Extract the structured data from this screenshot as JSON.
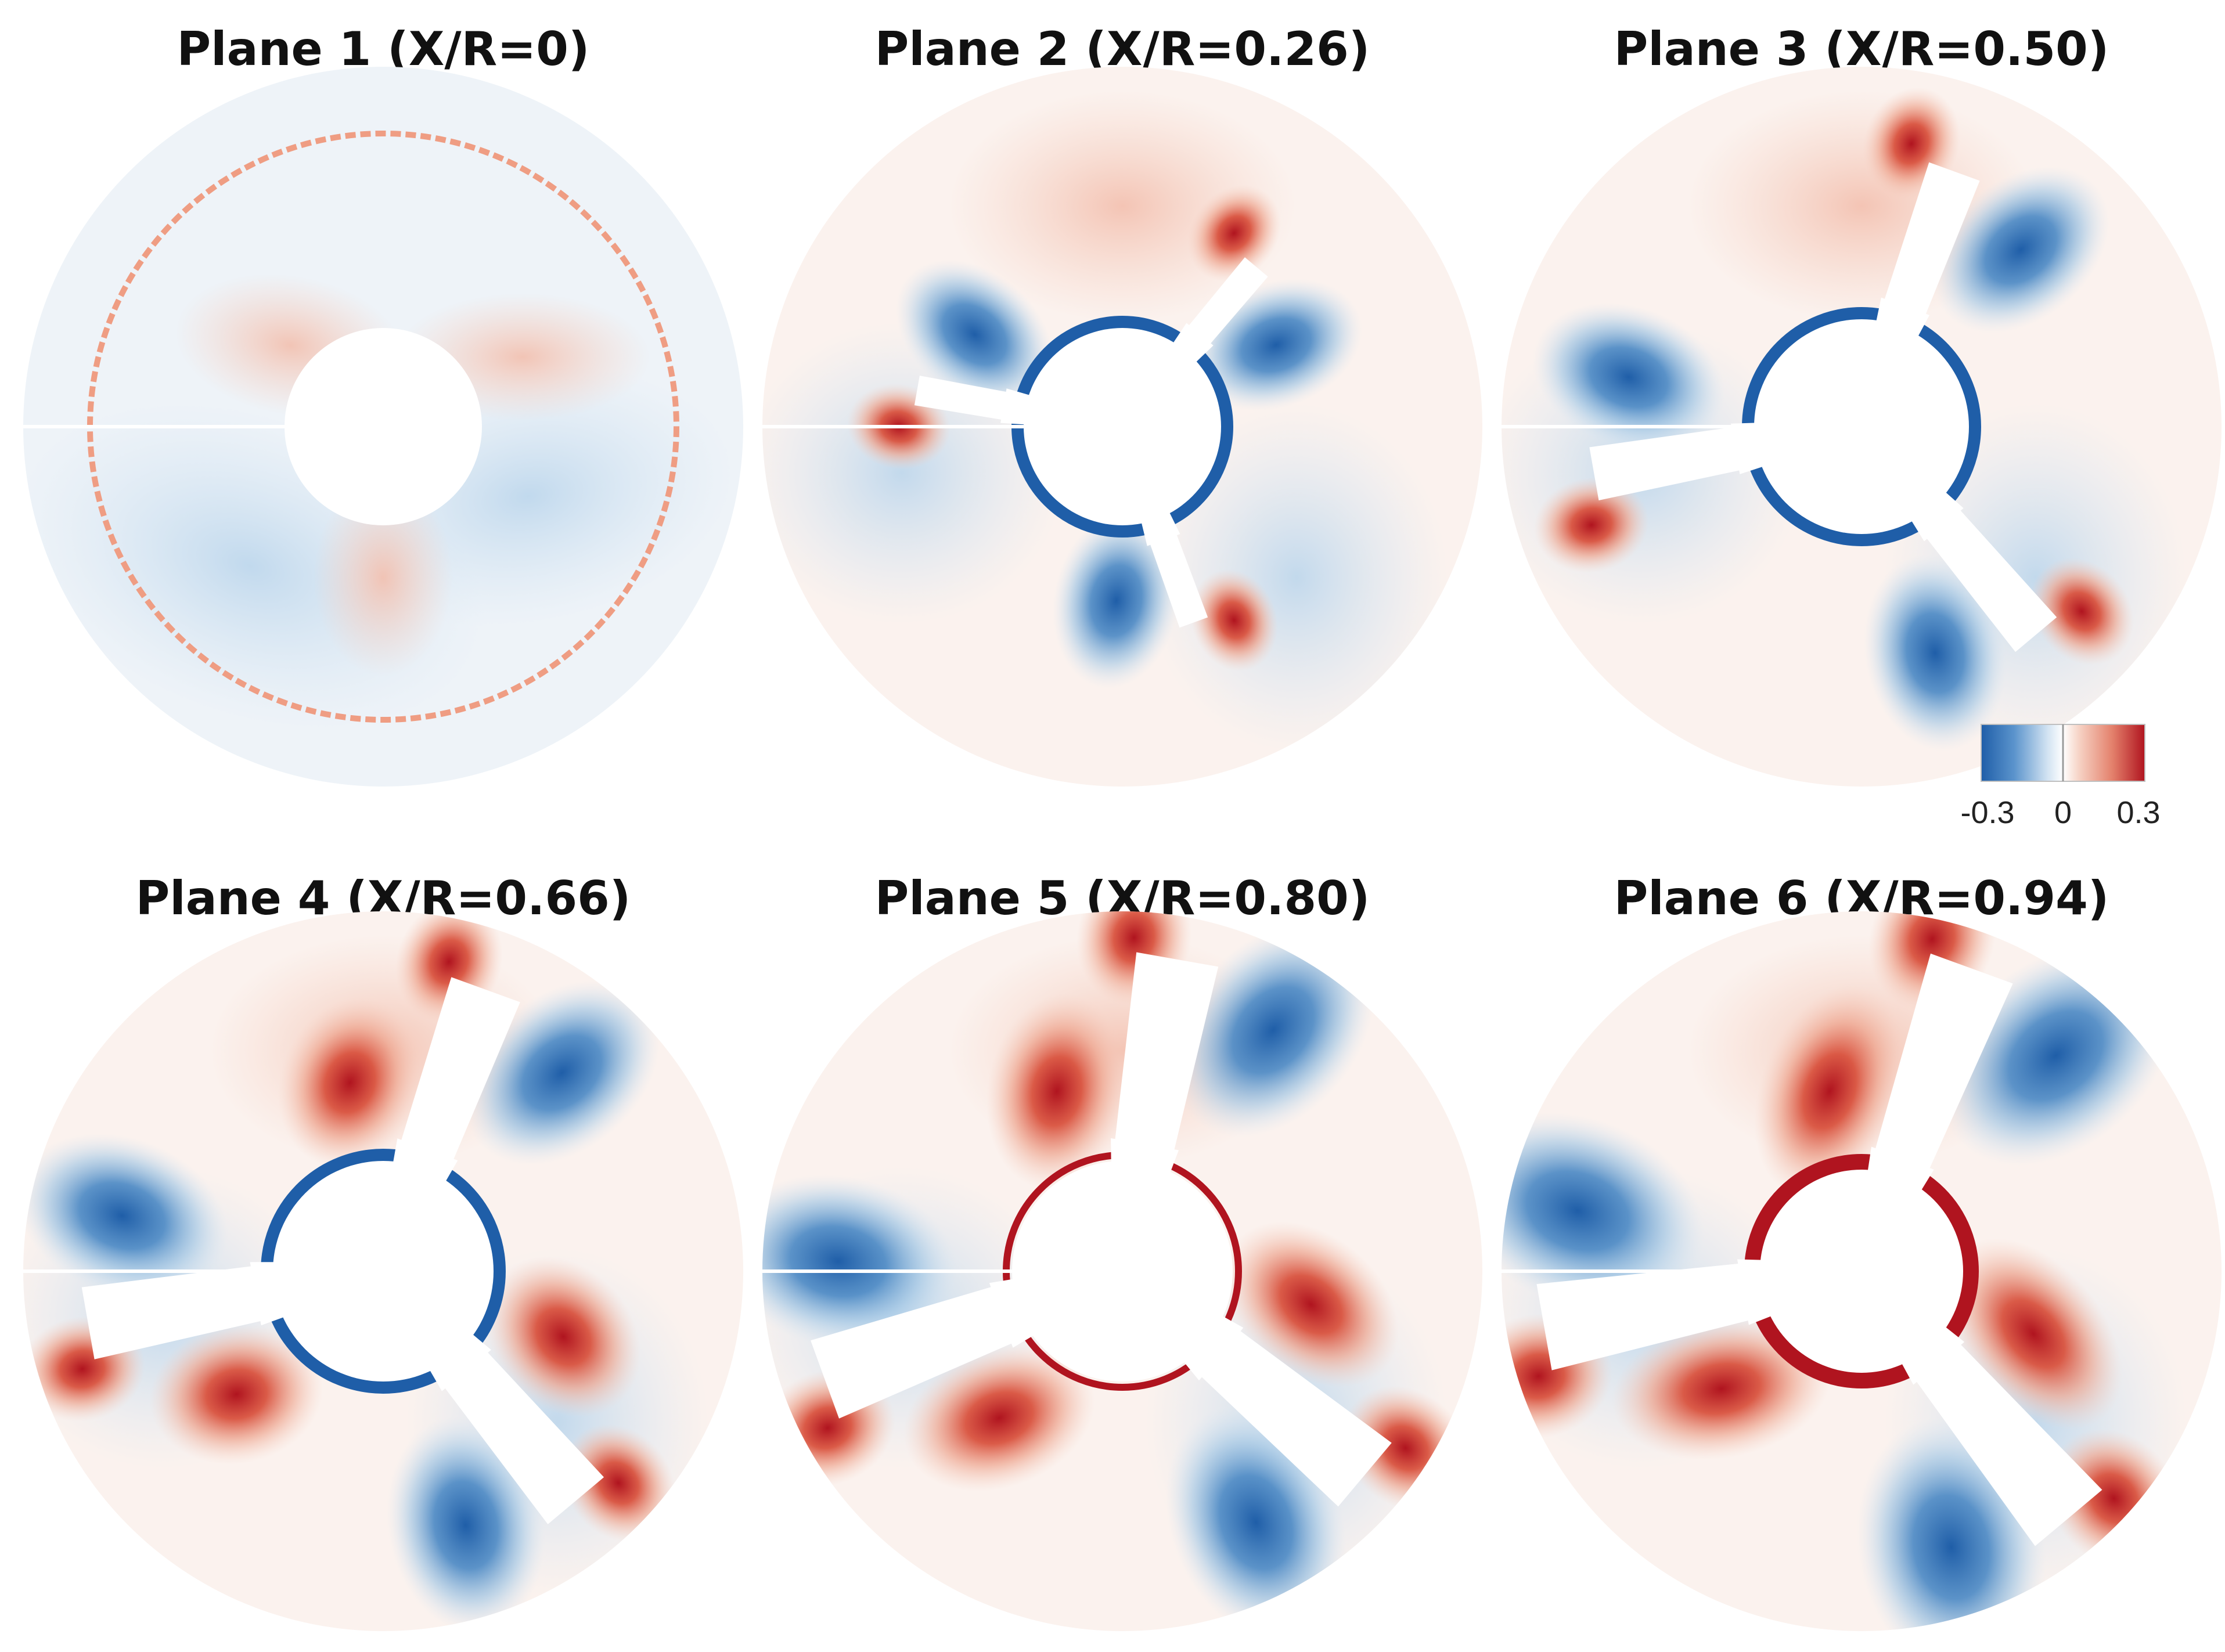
{
  "chart_data": {
    "type": "heatmap",
    "colors": {
      "negative_max": "#1f5ea8",
      "negative_mid": "#6ea6d6",
      "negative_light": "#d6e6f3",
      "neutral_cool": "#eef3f8",
      "neutral_warm": "#fbf2ee",
      "positive_light": "#f6d2c4",
      "positive_mid": "#e4816c",
      "positive_max": "#b0141f"
    },
    "colorbar": {
      "min": -0.3,
      "max": 0.3,
      "tick_labels": [
        "-0.3",
        "0",
        "0.3"
      ]
    },
    "panels": [
      {
        "title": "Plane 1 (X/R=0)",
        "x_over_R": 0,
        "hub_ring": "none",
        "blades_visible": false
      },
      {
        "title": "Plane 2 (X/R=0.26)",
        "x_over_R": 0.26,
        "hub_ring": "negative",
        "blades_visible": true
      },
      {
        "title": "Plane 3 (X/R=0.50)",
        "x_over_R": 0.5,
        "hub_ring": "negative",
        "blades_visible": true
      },
      {
        "title": "Plane 4 (X/R=0.66)",
        "x_over_R": 0.66,
        "hub_ring": "negative",
        "blades_visible": true
      },
      {
        "title": "Plane 5 (X/R=0.80)",
        "x_over_R": 0.8,
        "hub_ring": "positive",
        "blades_visible": true
      },
      {
        "title": "Plane 6 (X/R=0.94)",
        "x_over_R": 0.94,
        "hub_ring": "positive",
        "blades_visible": true
      }
    ]
  }
}
